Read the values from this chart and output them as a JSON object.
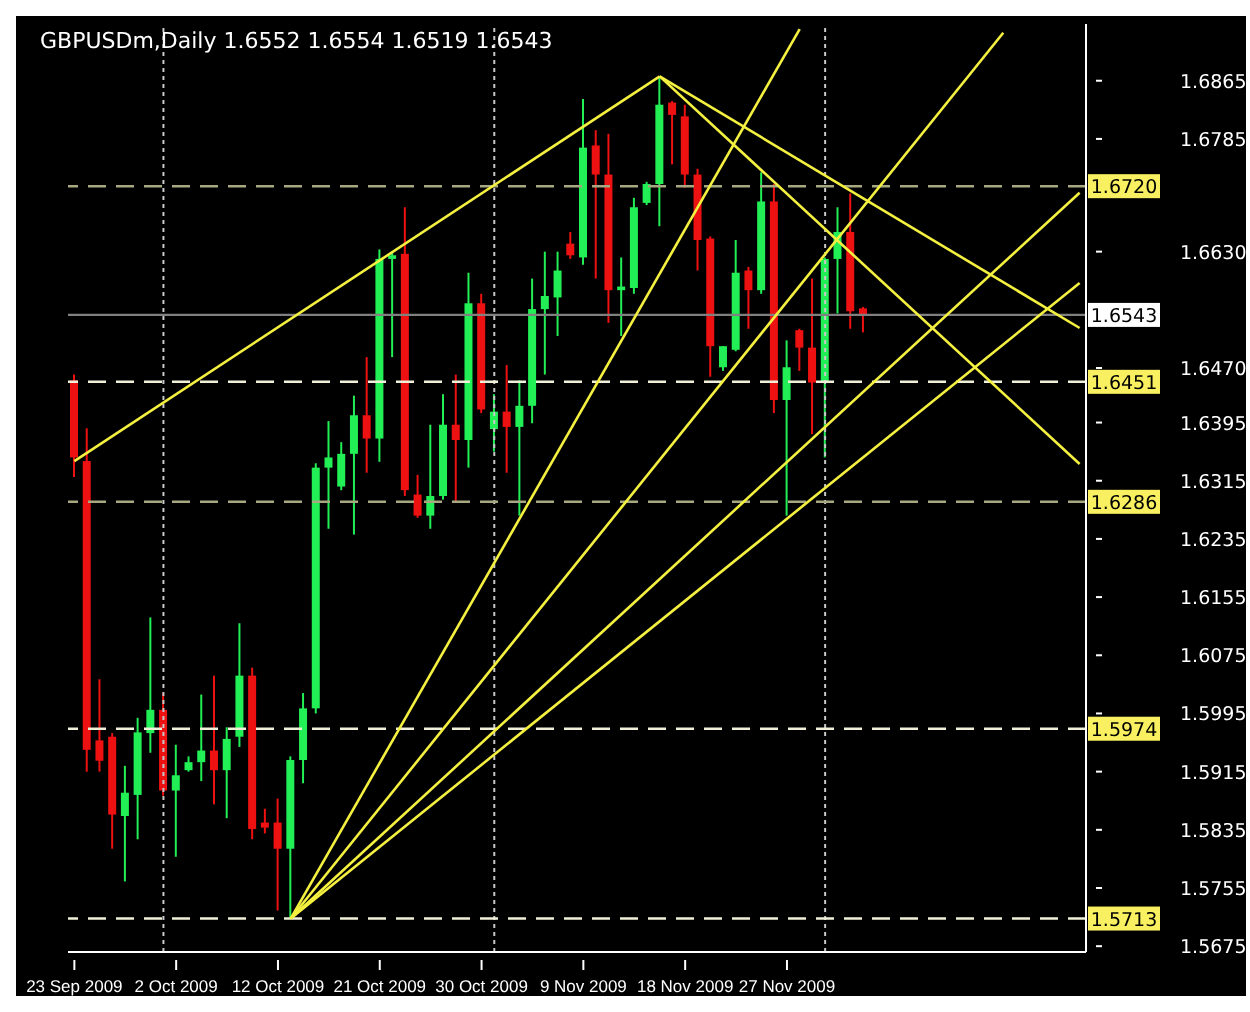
{
  "chart_data": {
    "type": "candlestick",
    "title": "GBPUSDm,Daily 1.6552 1.6554 1.6519 1.6543",
    "categories": [
      "23 Sep 2009",
      null,
      null,
      null,
      null,
      null,
      null,
      null,
      "2 Oct 2009",
      null,
      null,
      null,
      null,
      null,
      null,
      null,
      "12 Oct 2009",
      null,
      null,
      null,
      null,
      null,
      null,
      null,
      "21 Oct 2009",
      null,
      null,
      null,
      null,
      null,
      null,
      null,
      "30 Oct 2009",
      null,
      null,
      null,
      null,
      null,
      null,
      null,
      "9 Nov 2009",
      null,
      null,
      null,
      null,
      null,
      null,
      null,
      "18 Nov 2009",
      null,
      null,
      null,
      null,
      null,
      null,
      null,
      "27 Nov 2009",
      null,
      null,
      null,
      null,
      null,
      null,
      null,
      null,
      null,
      null,
      null,
      null,
      null,
      null,
      null,
      null,
      null,
      null,
      null,
      null,
      null,
      null,
      null
    ],
    "ohlc": [
      [
        1.6453,
        1.6461,
        1.632,
        1.6347
      ],
      [
        1.6342,
        1.6387,
        1.5915,
        1.5945
      ],
      [
        1.5958,
        1.6042,
        1.5915,
        1.593
      ],
      [
        1.5963,
        1.5968,
        1.5809,
        1.5856
      ],
      [
        1.5854,
        1.5923,
        1.5764,
        1.5886
      ],
      [
        1.5883,
        1.5989,
        1.5822,
        1.5969
      ],
      [
        1.5968,
        1.6127,
        1.5941,
        1.6
      ],
      [
        1.6,
        1.6023,
        1.5882,
        1.5889
      ],
      [
        1.5889,
        1.5952,
        1.5798,
        1.591
      ],
      [
        1.5917,
        1.5936,
        1.5915,
        1.5928
      ],
      [
        1.5928,
        1.6021,
        1.5902,
        1.5944
      ],
      [
        1.5944,
        1.6047,
        1.587,
        1.5917
      ],
      [
        1.5917,
        1.5976,
        1.5851,
        1.596
      ],
      [
        1.5963,
        1.6119,
        1.5949,
        1.6047
      ],
      [
        1.6047,
        1.6058,
        1.5822,
        1.5836
      ],
      [
        1.5845,
        1.5864,
        1.583,
        1.5838
      ],
      [
        1.5845,
        1.5878,
        1.5724,
        1.5809
      ],
      [
        1.5809,
        1.5936,
        1.5713,
        1.5931
      ],
      [
        1.5931,
        1.6023,
        1.5899,
        1.6002
      ],
      [
        1.6002,
        1.6339,
        1.5995,
        1.6333
      ],
      [
        1.6333,
        1.6397,
        1.6249,
        1.6347
      ],
      [
        1.6307,
        1.6368,
        1.6302,
        1.6352
      ],
      [
        1.6352,
        1.6432,
        1.6241,
        1.6405
      ],
      [
        1.6405,
        1.6485,
        1.6326,
        1.6373
      ],
      [
        1.6373,
        1.6633,
        1.6341,
        1.662
      ],
      [
        1.662,
        1.663,
        1.6485,
        1.6625
      ],
      [
        1.6627,
        1.6691,
        1.6294,
        1.6302
      ],
      [
        1.6296,
        1.6323,
        1.6264,
        1.6267
      ],
      [
        1.6267,
        1.6392,
        1.6249,
        1.6294
      ],
      [
        1.6294,
        1.6434,
        1.6289,
        1.6392
      ],
      [
        1.6392,
        1.6461,
        1.6286,
        1.6371
      ],
      [
        1.6371,
        1.6601,
        1.6333,
        1.6559
      ],
      [
        1.6559,
        1.6572,
        1.6408,
        1.6413
      ],
      [
        1.6386,
        1.6434,
        1.6355,
        1.641
      ],
      [
        1.641,
        1.6474,
        1.6326,
        1.6389
      ],
      [
        1.6389,
        1.6453,
        1.6267,
        1.6418
      ],
      [
        1.6418,
        1.6593,
        1.6394,
        1.6551
      ],
      [
        1.6551,
        1.663,
        1.6461,
        1.6569
      ],
      [
        1.6567,
        1.663,
        1.6514,
        1.6604
      ],
      [
        1.6641,
        1.6657,
        1.662,
        1.6625
      ],
      [
        1.6622,
        1.684,
        1.6612,
        1.6773
      ],
      [
        1.6776,
        1.6797,
        1.6593,
        1.6736
      ],
      [
        1.6736,
        1.6792,
        1.6532,
        1.6577
      ],
      [
        1.6577,
        1.6622,
        1.6514,
        1.6582
      ],
      [
        1.658,
        1.6704,
        1.6572,
        1.6691
      ],
      [
        1.6697,
        1.6726,
        1.6694,
        1.6723
      ],
      [
        1.6723,
        1.6871,
        1.6665,
        1.6832
      ],
      [
        1.6835,
        1.6837,
        1.675,
        1.6818
      ],
      [
        1.6816,
        1.6832,
        1.6718,
        1.6736
      ],
      [
        1.6736,
        1.6744,
        1.6604,
        1.6646
      ],
      [
        1.6648,
        1.6651,
        1.6458,
        1.65
      ],
      [
        1.6471,
        1.65,
        1.6466,
        1.65
      ],
      [
        1.6495,
        1.6646,
        1.6493,
        1.6601
      ],
      [
        1.6604,
        1.6609,
        1.6524,
        1.6577
      ],
      [
        1.6577,
        1.6739,
        1.6572,
        1.6699
      ],
      [
        1.6699,
        1.6723,
        1.6408,
        1.6426
      ],
      [
        1.6426,
        1.6508,
        1.6267,
        1.6471
      ],
      [
        1.6522,
        1.6524,
        1.6466,
        1.6498
      ],
      [
        1.6498,
        1.6593,
        1.6379,
        1.645
      ],
      [
        1.645,
        1.6622,
        1.6347,
        1.662
      ],
      [
        1.662,
        1.6691,
        1.6545,
        1.6657
      ],
      [
        1.6657,
        1.671,
        1.6524,
        1.6548
      ],
      [
        1.6552,
        1.6554,
        1.6519,
        1.6543
      ],
      null,
      null,
      null,
      null,
      null,
      null,
      null,
      null,
      null,
      null,
      null,
      null,
      null,
      null,
      null,
      null,
      null
    ],
    "colors": [
      "#ee1111",
      "#ee1111",
      "#ee1111",
      "#ee1111",
      "#22ee55",
      "#22ee55",
      "#22ee55",
      "#ee1111",
      "#22ee55",
      "#22ee55",
      "#22ee55",
      "#ee1111",
      "#22ee55",
      "#22ee55",
      "#ee1111",
      "#ee1111",
      "#ee1111",
      "#22ee55",
      "#22ee55",
      "#22ee55",
      "#22ee55",
      "#22ee55",
      "#22ee55",
      "#ee1111",
      "#22ee55",
      "#22ee55",
      "#ee1111",
      "#ee1111",
      "#22ee55",
      "#22ee55",
      "#ee1111",
      "#22ee55",
      "#ee1111",
      "#22ee55",
      "#ee1111",
      "#22ee55",
      "#22ee55",
      "#22ee55",
      "#22ee55",
      "#ee1111",
      "#22ee55",
      "#ee1111",
      "#ee1111",
      "#22ee55",
      "#22ee55",
      "#22ee55",
      "#22ee55",
      "#ee1111",
      "#ee1111",
      "#ee1111",
      "#ee1111",
      "#22ee55",
      "#22ee55",
      "#ee1111",
      "#22ee55",
      "#ee1111",
      "#22ee55",
      "#ee1111",
      "#ee1111",
      "#22ee55",
      "#22ee55",
      "#ee1111",
      "#ee1111",
      null,
      null,
      null,
      null,
      null,
      null,
      null,
      null,
      null,
      null,
      null,
      null,
      null,
      null,
      null,
      null,
      null
    ],
    "series": [
      {
        "type": "line",
        "color": "#f4f040",
        "values": [
          1.6342,
          null,
          null,
          null,
          null,
          null,
          null,
          null,
          null,
          null,
          null,
          null,
          null,
          null,
          null,
          null,
          null,
          null,
          null,
          null,
          null,
          null,
          null,
          null,
          null,
          null,
          null,
          null,
          null,
          null,
          null,
          null,
          null,
          null,
          null,
          null,
          null,
          null,
          null,
          null,
          null,
          null,
          null,
          null,
          null,
          null,
          1.6871,
          null,
          null,
          null,
          null,
          null,
          null,
          null,
          null,
          null,
          null,
          null,
          null,
          null,
          null,
          null,
          null,
          null,
          null,
          null,
          null,
          null,
          null,
          null,
          null,
          null,
          null,
          null,
          null,
          null,
          null,
          null,
          null,
          null
        ]
      },
      {
        "type": "line",
        "color": "#f4f040",
        "values": [
          null,
          null,
          null,
          null,
          null,
          null,
          null,
          null,
          null,
          null,
          null,
          null,
          null,
          null,
          null,
          null,
          null,
          null,
          null,
          null,
          null,
          null,
          null,
          null,
          null,
          null,
          null,
          null,
          null,
          null,
          null,
          null,
          null,
          null,
          null,
          null,
          null,
          null,
          null,
          null,
          null,
          null,
          null,
          null,
          null,
          null,
          1.6871,
          null,
          null,
          null,
          null,
          null,
          null,
          null,
          null,
          null,
          null,
          null,
          null,
          null,
          null,
          null,
          null,
          null,
          null,
          null,
          null,
          null,
          null,
          null,
          null,
          null,
          null,
          null,
          null,
          null,
          null,
          null,
          null,
          1.6525
        ]
      },
      {
        "type": "line",
        "color": "#f4f040",
        "values": [
          null,
          null,
          null,
          null,
          null,
          null,
          null,
          null,
          null,
          null,
          null,
          null,
          null,
          null,
          null,
          null,
          null,
          null,
          null,
          null,
          null,
          null,
          null,
          null,
          null,
          null,
          null,
          null,
          null,
          null,
          null,
          null,
          null,
          null,
          null,
          null,
          null,
          null,
          null,
          null,
          null,
          null,
          null,
          null,
          null,
          null,
          1.6871,
          null,
          null,
          null,
          null,
          null,
          null,
          null,
          null,
          null,
          null,
          null,
          null,
          null,
          null,
          null,
          null,
          null,
          null,
          null,
          null,
          null,
          null,
          null,
          null,
          null,
          null,
          null,
          null,
          null,
          null,
          null,
          null,
          1.6338
        ]
      },
      {
        "type": "line",
        "color": "#f4f040",
        "values": [
          null,
          null,
          null,
          null,
          null,
          null,
          null,
          null,
          null,
          null,
          null,
          null,
          null,
          null,
          null,
          null,
          null,
          1.5713,
          null,
          null,
          null,
          null,
          null,
          null,
          null,
          null,
          null,
          null,
          null,
          null,
          null,
          null,
          null,
          null,
          null,
          null,
          null,
          null,
          null,
          null,
          null,
          null,
          null,
          null,
          null,
          null,
          null,
          null,
          null,
          null,
          null,
          null,
          null,
          null,
          null,
          null,
          null,
          1.6936,
          null,
          null,
          null,
          null,
          null,
          null,
          null,
          null,
          null,
          null,
          null,
          null,
          null,
          null,
          null,
          null,
          null,
          null,
          null,
          null,
          null,
          null
        ]
      },
      {
        "type": "line",
        "color": "#f4f040",
        "values": [
          null,
          null,
          null,
          null,
          null,
          null,
          null,
          null,
          null,
          null,
          null,
          null,
          null,
          null,
          null,
          null,
          null,
          1.5713,
          null,
          null,
          null,
          null,
          null,
          null,
          null,
          null,
          null,
          null,
          null,
          null,
          null,
          null,
          null,
          null,
          null,
          null,
          null,
          null,
          null,
          null,
          null,
          null,
          null,
          null,
          null,
          null,
          null,
          null,
          null,
          null,
          null,
          null,
          null,
          null,
          null,
          null,
          null,
          null,
          null,
          null,
          null,
          null,
          null,
          null,
          null,
          null,
          null,
          null,
          null,
          null,
          null,
          null,
          null,
          1.6931,
          null,
          null,
          null,
          null,
          null,
          null
        ]
      },
      {
        "type": "line",
        "color": "#f4f040",
        "values": [
          null,
          null,
          null,
          null,
          null,
          null,
          null,
          null,
          null,
          null,
          null,
          null,
          null,
          null,
          null,
          null,
          null,
          1.5713,
          null,
          null,
          null,
          null,
          null,
          null,
          null,
          null,
          null,
          null,
          null,
          null,
          null,
          null,
          null,
          null,
          null,
          null,
          null,
          null,
          null,
          null,
          null,
          null,
          null,
          null,
          null,
          null,
          null,
          null,
          null,
          null,
          null,
          null,
          null,
          null,
          null,
          null,
          null,
          null,
          null,
          null,
          null,
          null,
          null,
          null,
          null,
          null,
          null,
          null,
          null,
          null,
          null,
          null,
          null,
          null,
          null,
          null,
          null,
          null,
          null,
          1.6711
        ]
      },
      {
        "type": "line",
        "color": "#f4f040",
        "values": [
          null,
          null,
          null,
          null,
          null,
          null,
          null,
          null,
          null,
          null,
          null,
          null,
          null,
          null,
          null,
          null,
          null,
          1.5713,
          null,
          null,
          null,
          null,
          null,
          null,
          null,
          null,
          null,
          null,
          null,
          null,
          null,
          null,
          null,
          null,
          null,
          null,
          null,
          null,
          null,
          null,
          null,
          null,
          null,
          null,
          null,
          null,
          null,
          null,
          null,
          null,
          null,
          null,
          null,
          null,
          null,
          null,
          null,
          null,
          null,
          null,
          null,
          null,
          null,
          null,
          null,
          null,
          null,
          null,
          null,
          null,
          null,
          null,
          null,
          null,
          null,
          null,
          null,
          null,
          null,
          1.6587
        ]
      }
    ],
    "grid": "x",
    "ylim": [
      1.5667,
      1.6943
    ],
    "yticks": [
      1.5675,
      1.5755,
      1.5835,
      1.5915,
      1.5995,
      1.6075,
      1.6155,
      1.6235,
      1.6315,
      1.6395,
      {
        "value": 1.647,
        "label": "1.6470"
      },
      {
        "value": 1.663,
        "label": "1.6630"
      },
      1.6785,
      1.6865
    ],
    "ref_lines": [
      {
        "axis": "y",
        "value": 1.672,
        "label": "1.6720",
        "color": "#a8a880",
        "line_style": "dashed"
      },
      {
        "axis": "y",
        "value": 1.6543,
        "label": "1.6543",
        "color": "#808080",
        "line_style": "solid"
      },
      {
        "axis": "y",
        "value": 1.6451,
        "label": "1.6451",
        "color": "#f0f0d8",
        "line_style": "dashed"
      },
      {
        "axis": "y",
        "value": 1.6286,
        "label": "1.6286",
        "color": "#a8a880",
        "line_style": "dashed"
      },
      {
        "axis": "y",
        "value": 1.5974,
        "label": "1.5974",
        "color": "#f0f0d8",
        "line_style": "dashed"
      },
      {
        "axis": "y",
        "value": 1.5713,
        "label": "1.5713",
        "color": "#f0f0d8",
        "line_style": "dashed"
      }
    ]
  }
}
